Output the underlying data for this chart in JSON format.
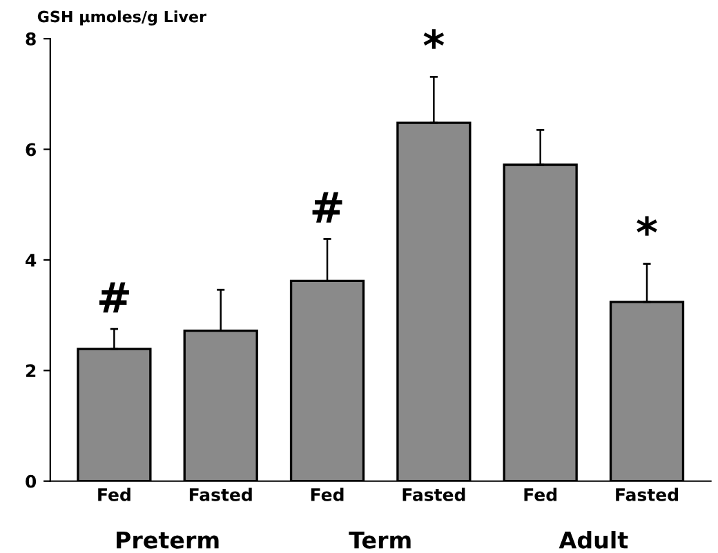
{
  "chart_data": {
    "type": "bar",
    "ylabel": "GSH µmoles/g Liver",
    "categories": [
      "Fed",
      "Fasted",
      "Fed",
      "Fasted",
      "Fed",
      "Fasted"
    ],
    "values": [
      2.39,
      2.72,
      3.62,
      6.48,
      5.72,
      3.24
    ],
    "errors": [
      [
        2.39,
        2.75
      ],
      [
        2.72,
        3.46
      ],
      [
        3.62,
        4.38
      ],
      [
        6.48,
        7.31
      ],
      [
        5.72,
        6.35
      ],
      [
        3.24,
        3.93
      ]
    ],
    "value_labels": [
      "#",
      null,
      "#",
      "*",
      null,
      "*"
    ],
    "color": "#8a8a8a",
    "annotations": [
      "Preterm",
      "Term",
      "Adult"
    ],
    "ylim": [
      0,
      8
    ],
    "yticks": [
      0,
      2,
      4,
      6,
      8
    ],
    "grid": false,
    "legend": false
  }
}
